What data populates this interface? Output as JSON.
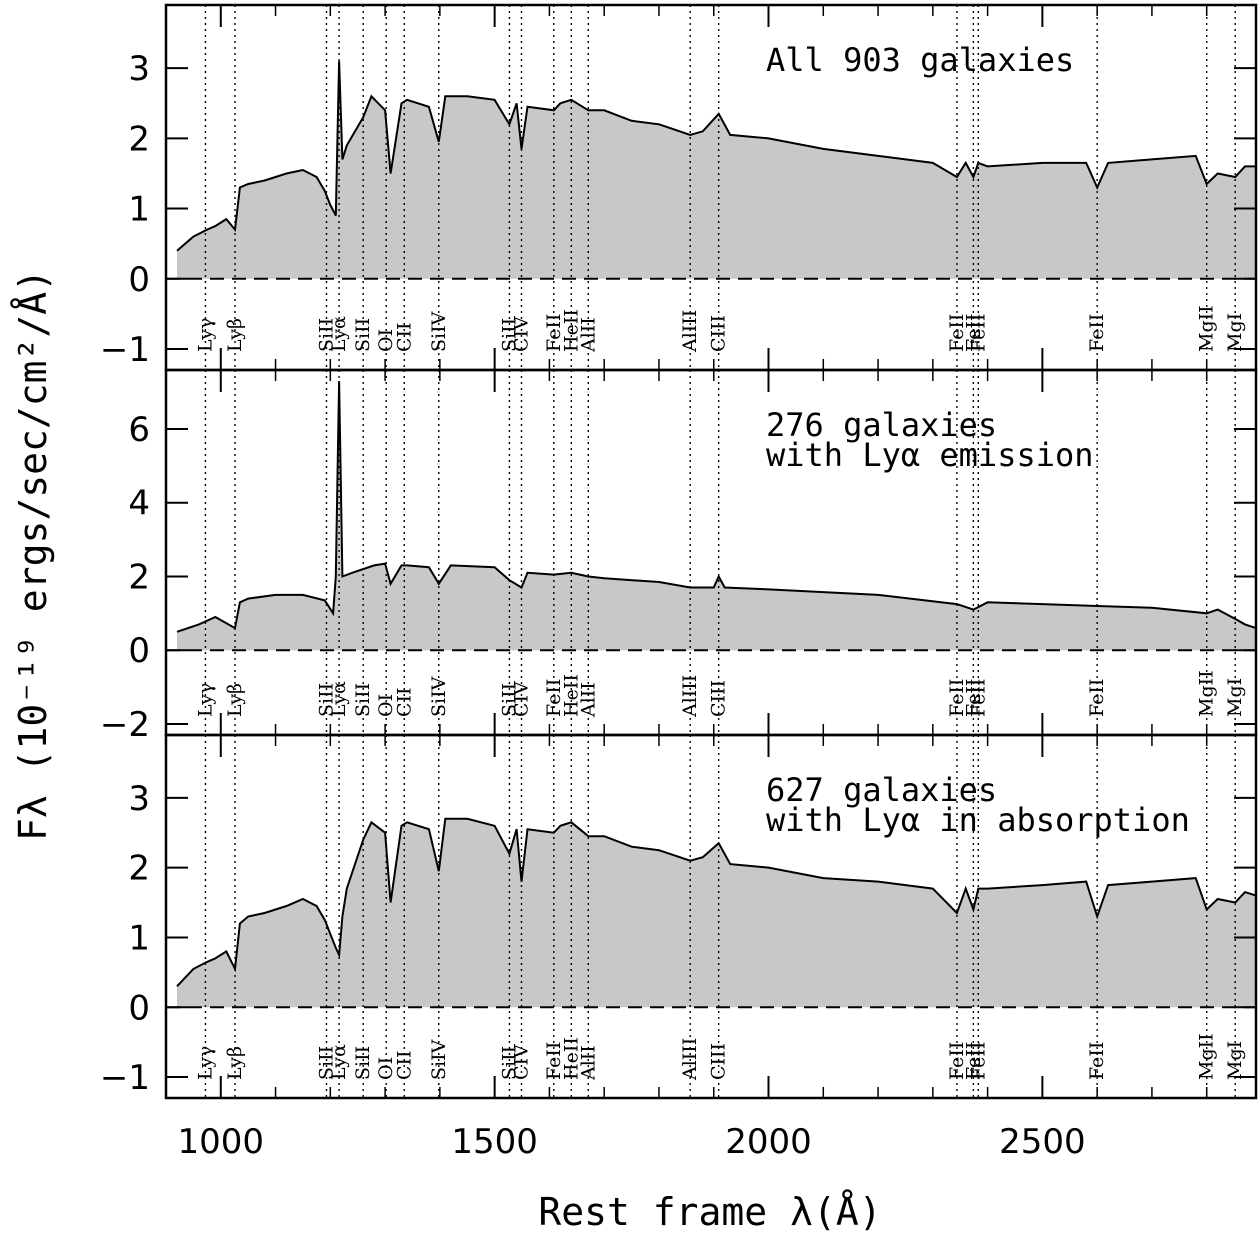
{
  "chart_data": {
    "type": "area",
    "xlabel": "Rest frame λ(Å)",
    "ylabel": "Fλ (10⁻¹⁹ ergs/sec/cm²/Å)",
    "xlim": [
      900,
      2890
    ],
    "x_ticks": [
      1000,
      1500,
      2000,
      2500
    ],
    "fill_color": "#c8c8c8",
    "line_color": "#000000",
    "line_markers": [
      {
        "label": "Lyγ",
        "x": 972
      },
      {
        "label": "Lyβ",
        "x": 1026
      },
      {
        "label": "SiII",
        "x": 1193
      },
      {
        "label": "Lyα",
        "x": 1216
      },
      {
        "label": "SiII",
        "x": 1260
      },
      {
        "label": "OI",
        "x": 1302
      },
      {
        "label": "CII",
        "x": 1335
      },
      {
        "label": "SiIV",
        "x": 1398
      },
      {
        "label": "SiII",
        "x": 1527
      },
      {
        "label": "CIV",
        "x": 1549
      },
      {
        "label": "FeII",
        "x": 1608
      },
      {
        "label": "HeII",
        "x": 1640
      },
      {
        "label": "AlII",
        "x": 1671
      },
      {
        "label": "AlIII",
        "x": 1857
      },
      {
        "label": "CIII",
        "x": 1909
      },
      {
        "label": "FeII",
        "x": 2344
      },
      {
        "label": "FeII",
        "x": 2374
      },
      {
        "label": "FeII",
        "x": 2383
      },
      {
        "label": "FeII",
        "x": 2600
      },
      {
        "label": "MgII",
        "x": 2800
      },
      {
        "label": "MgI",
        "x": 2852
      }
    ],
    "panels": [
      {
        "title_lines": [
          "All 903 galaxies"
        ],
        "ylim": [
          -1.3,
          3.9
        ],
        "y_ticks": [
          -1,
          0,
          1,
          2,
          3
        ],
        "series": {
          "x": [
            920,
            950,
            975,
            990,
            1010,
            1026,
            1035,
            1050,
            1080,
            1120,
            1150,
            1175,
            1190,
            1200,
            1210,
            1216,
            1222,
            1230,
            1260,
            1275,
            1300,
            1310,
            1330,
            1340,
            1380,
            1398,
            1410,
            1450,
            1500,
            1527,
            1540,
            1549,
            1560,
            1608,
            1620,
            1640,
            1671,
            1700,
            1750,
            1800,
            1857,
            1880,
            1909,
            1930,
            2000,
            2100,
            2200,
            2300,
            2344,
            2360,
            2374,
            2383,
            2400,
            2500,
            2580,
            2600,
            2620,
            2700,
            2780,
            2800,
            2820,
            2852,
            2870,
            2890
          ],
          "y": [
            0.4,
            0.6,
            0.7,
            0.75,
            0.85,
            0.7,
            1.3,
            1.35,
            1.4,
            1.5,
            1.55,
            1.45,
            1.25,
            1.05,
            0.9,
            3.1,
            1.7,
            1.9,
            2.3,
            2.6,
            2.4,
            1.5,
            2.5,
            2.55,
            2.45,
            1.95,
            2.6,
            2.6,
            2.55,
            2.2,
            2.5,
            1.85,
            2.45,
            2.4,
            2.5,
            2.55,
            2.4,
            2.4,
            2.25,
            2.2,
            2.05,
            2.1,
            2.35,
            2.05,
            2.0,
            1.85,
            1.75,
            1.65,
            1.45,
            1.65,
            1.45,
            1.65,
            1.6,
            1.65,
            1.65,
            1.3,
            1.65,
            1.7,
            1.75,
            1.35,
            1.5,
            1.45,
            1.6,
            1.6
          ]
        }
      },
      {
        "title_lines": [
          "276 galaxies",
          "with Lyα emission"
        ],
        "ylim": [
          -2.3,
          7.6
        ],
        "y_ticks": [
          -2,
          0,
          2,
          4,
          6
        ],
        "series": {
          "x": [
            920,
            960,
            990,
            1026,
            1035,
            1050,
            1100,
            1150,
            1190,
            1205,
            1210,
            1216,
            1222,
            1240,
            1280,
            1300,
            1310,
            1330,
            1340,
            1380,
            1398,
            1420,
            1500,
            1527,
            1549,
            1560,
            1608,
            1640,
            1671,
            1700,
            1800,
            1857,
            1900,
            1909,
            1920,
            2000,
            2200,
            2344,
            2374,
            2400,
            2500,
            2600,
            2700,
            2800,
            2820,
            2852,
            2870,
            2890
          ],
          "y": [
            0.5,
            0.7,
            0.9,
            0.6,
            1.3,
            1.4,
            1.5,
            1.5,
            1.35,
            1.0,
            2.0,
            7.3,
            2.0,
            2.1,
            2.3,
            2.35,
            1.8,
            2.3,
            2.3,
            2.25,
            1.8,
            2.3,
            2.25,
            1.9,
            1.7,
            2.1,
            2.05,
            2.1,
            2.0,
            1.95,
            1.85,
            1.7,
            1.7,
            2.0,
            1.7,
            1.65,
            1.5,
            1.25,
            1.1,
            1.3,
            1.25,
            1.2,
            1.15,
            1.0,
            1.1,
            0.85,
            0.7,
            0.6
          ]
        }
      },
      {
        "title_lines": [
          "627 galaxies",
          "with Lyα in absorption"
        ],
        "ylim": [
          -1.3,
          3.9
        ],
        "y_ticks": [
          -1,
          0,
          1,
          2,
          3
        ],
        "series": {
          "x": [
            920,
            950,
            975,
            990,
            1010,
            1026,
            1035,
            1050,
            1080,
            1120,
            1150,
            1175,
            1190,
            1200,
            1210,
            1216,
            1222,
            1230,
            1260,
            1275,
            1300,
            1310,
            1330,
            1340,
            1380,
            1398,
            1410,
            1450,
            1500,
            1527,
            1540,
            1549,
            1560,
            1608,
            1620,
            1640,
            1671,
            1700,
            1750,
            1800,
            1857,
            1880,
            1909,
            1930,
            2000,
            2100,
            2200,
            2300,
            2344,
            2360,
            2374,
            2383,
            2400,
            2500,
            2580,
            2600,
            2620,
            2700,
            2780,
            2800,
            2820,
            2852,
            2870,
            2890
          ],
          "y": [
            0.3,
            0.55,
            0.65,
            0.7,
            0.8,
            0.55,
            1.2,
            1.3,
            1.35,
            1.45,
            1.55,
            1.45,
            1.25,
            1.05,
            0.85,
            0.75,
            1.3,
            1.7,
            2.4,
            2.65,
            2.5,
            1.5,
            2.6,
            2.65,
            2.55,
            1.95,
            2.7,
            2.7,
            2.6,
            2.2,
            2.55,
            1.8,
            2.55,
            2.5,
            2.6,
            2.65,
            2.45,
            2.45,
            2.3,
            2.25,
            2.1,
            2.15,
            2.35,
            2.05,
            2.0,
            1.85,
            1.8,
            1.7,
            1.35,
            1.7,
            1.4,
            1.7,
            1.7,
            1.75,
            1.8,
            1.3,
            1.75,
            1.8,
            1.85,
            1.4,
            1.55,
            1.5,
            1.65,
            1.6
          ]
        }
      }
    ]
  }
}
